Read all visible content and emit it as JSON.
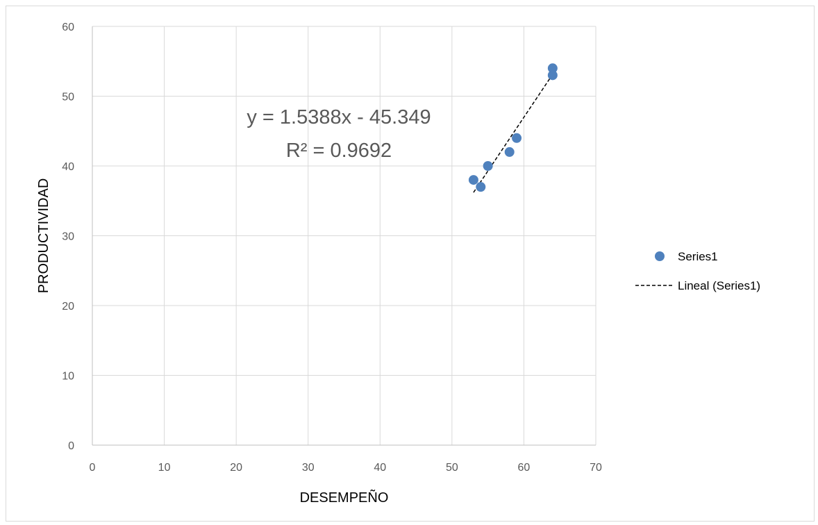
{
  "chart_data": {
    "type": "scatter",
    "xlabel": "DESEMPEÑO",
    "ylabel": "PRODUCTIVIDAD",
    "xlim": [
      0,
      70
    ],
    "ylim": [
      0,
      60
    ],
    "xticks": [
      0,
      10,
      20,
      30,
      40,
      50,
      60,
      70
    ],
    "yticks": [
      0,
      10,
      20,
      30,
      40,
      50,
      60
    ],
    "grid": true,
    "legend_position": "right",
    "series": [
      {
        "name": "Series1",
        "color": "#4f81bd",
        "marker": "circle",
        "points": [
          {
            "x": 53,
            "y": 38
          },
          {
            "x": 54,
            "y": 37
          },
          {
            "x": 55,
            "y": 40
          },
          {
            "x": 58,
            "y": 42
          },
          {
            "x": 59,
            "y": 44
          },
          {
            "x": 64,
            "y": 54
          },
          {
            "x": 64,
            "y": 53
          }
        ]
      }
    ],
    "trendline": {
      "name": "Lineal (Series1)",
      "type": "linear",
      "slope": 1.5388,
      "intercept": -45.349,
      "x_range": [
        53,
        64
      ],
      "style": "dashed",
      "color": "#000000"
    },
    "annotations": {
      "equation": "y = 1.5388x - 45.349",
      "r_squared": "R² = 0.9692"
    }
  }
}
